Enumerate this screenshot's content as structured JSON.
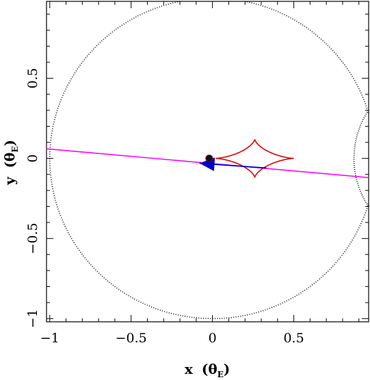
{
  "chart_data": {
    "type": "scatter",
    "title": "",
    "xlabel": "x",
    "xlabel_unit": "(θ",
    "xlabel_sub": "E",
    "xlabel_close": ")",
    "ylabel": "y",
    "ylabel_unit": "(θ",
    "ylabel_sub": "E",
    "ylabel_close": ")",
    "xlim": [
      -1.02,
      0.96
    ],
    "ylim": [
      -1.02,
      0.98
    ],
    "grid": false,
    "x_ticks": [
      {
        "value": -1,
        "label": "−1"
      },
      {
        "value": -0.5,
        "label": "−0.5"
      },
      {
        "value": 0,
        "label": "0"
      },
      {
        "value": 0.5,
        "label": "0.5"
      }
    ],
    "y_ticks": [
      {
        "value": -1,
        "label": "−1"
      },
      {
        "value": -0.5,
        "label": "−0.5"
      },
      {
        "value": 0,
        "label": "0"
      },
      {
        "value": 0.5,
        "label": "0.5"
      }
    ],
    "colors": {
      "critical_curve": "#000000",
      "caustic": "#e00000",
      "source_trajectory": "#ff00ff",
      "trajectory_arrow": "#0000cc",
      "lens": "#111111"
    },
    "critical_curve": {
      "center": [
        0,
        0
      ],
      "radius": 1.0,
      "side_lobe_center": [
        1.42,
        0.0
      ],
      "side_lobe_radius": 0.55
    },
    "caustic": {
      "center": [
        0.26,
        0.0
      ],
      "half_width": 0.24,
      "half_height": 0.12
    },
    "source_trajectory": {
      "x": [
        -1.02,
        0.96
      ],
      "y": [
        0.06,
        -0.12
      ]
    },
    "trajectory_arrow": {
      "x": [
        0.33,
        -0.08
      ],
      "y": [
        -0.06,
        -0.03
      ]
    },
    "lens_position": [
      -0.02,
      0.0
    ]
  }
}
